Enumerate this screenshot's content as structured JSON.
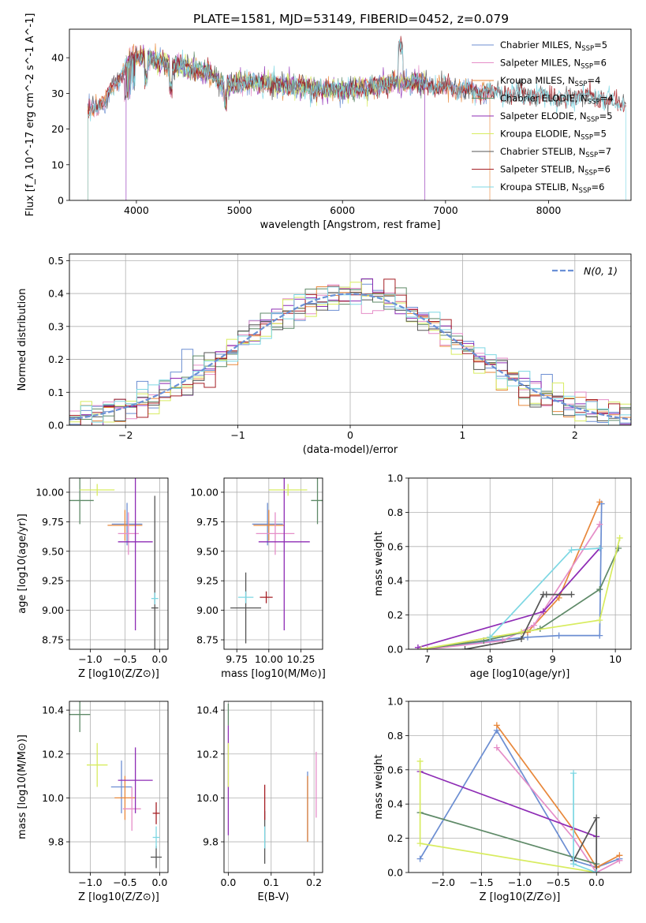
{
  "figure_title": "PLATE=1581, MJD=53149, FIBERID=0452, z=0.079",
  "colors": {
    "c1": "#6c8ed2",
    "c2": "#e8873a",
    "c3": "#e58ec8",
    "c4": "#5f8a68",
    "c5": "#8e2cb5",
    "c6": "#d8ec60",
    "c7": "#555555",
    "c8": "#a51f25",
    "c9": "#7dd7e3",
    "gaussian": "#6a90d6",
    "grid": "#b0b0b0"
  },
  "chart_data": [
    {
      "id": "spectrum",
      "type": "line",
      "xlabel": "wavelength [Angstrom, rest frame]",
      "ylabel": "Flux [f_λ 10^-17 erg cm^-2 s^-1 A^-1]",
      "xlim": [
        3350,
        8800
      ],
      "ylim": [
        0,
        48
      ],
      "xticks": [
        4000,
        5000,
        6000,
        7000,
        8000
      ],
      "yticks": [
        0,
        10,
        20,
        30,
        40
      ],
      "grid": false,
      "legend_placement": "upper right",
      "legend": [
        {
          "base": "Chabrier MILES, N",
          "sub": "SSP",
          "suffix": "=5",
          "color": "c1"
        },
        {
          "base": "Salpeter MILES, N",
          "sub": "SSP",
          "suffix": "=6",
          "color": "c3"
        },
        {
          "base": "Kroupa MILES, N",
          "sub": "SSP",
          "suffix": "=4",
          "color": "c2"
        },
        {
          "base": "Chabrier ELODIE, N",
          "sub": "SSP",
          "suffix": "=4",
          "color": "c4"
        },
        {
          "base": "Salpeter ELODIE, N",
          "sub": "SSP",
          "suffix": "=5",
          "color": "c5"
        },
        {
          "base": "Kroupa ELODIE, N",
          "sub": "SSP",
          "suffix": "=5",
          "color": "c6"
        },
        {
          "base": "Chabrier STELIB, N",
          "sub": "SSP",
          "suffix": "=7",
          "color": "c7"
        },
        {
          "base": "Salpeter STELIB, N",
          "sub": "SSP",
          "suffix": "=6",
          "color": "c8"
        },
        {
          "base": "Kroupa STELIB, N",
          "sub": "SSP",
          "suffix": "=6",
          "color": "c9"
        }
      ],
      "continuum": [
        [
          3530,
          25
        ],
        [
          3700,
          28
        ],
        [
          3850,
          35
        ],
        [
          3950,
          40
        ],
        [
          4100,
          40
        ],
        [
          4300,
          38
        ],
        [
          4500,
          37
        ],
        [
          4700,
          36
        ],
        [
          4870,
          32
        ],
        [
          5000,
          33
        ],
        [
          5200,
          33
        ],
        [
          5500,
          32
        ],
        [
          5800,
          31
        ],
        [
          6000,
          31
        ],
        [
          6300,
          32
        ],
        [
          6500,
          33
        ],
        [
          6700,
          33
        ],
        [
          6900,
          32
        ],
        [
          7200,
          31
        ],
        [
          7500,
          30
        ],
        [
          7800,
          29.5
        ],
        [
          8100,
          29
        ],
        [
          8400,
          29
        ],
        [
          8750,
          27
        ]
      ],
      "edges": {
        "miles": [
          3530,
          7430
        ],
        "elodie": [
          3900,
          6800
        ]
      }
    },
    {
      "id": "residuals",
      "type": "histogram",
      "xlabel": "(data-model)/error",
      "ylabel": "Normed distribution",
      "xlim": [
        -2.5,
        2.5
      ],
      "ylim": [
        0,
        0.52
      ],
      "xticks": [
        -2,
        -1,
        0,
        1,
        2
      ],
      "yticks": [
        0.0,
        0.1,
        0.2,
        0.3,
        0.4,
        0.5
      ],
      "grid": true,
      "legend_placement": "upper right",
      "legend": [
        {
          "label": "N(0, 1)",
          "color": "gaussian",
          "style": "dashed"
        }
      ],
      "bin_width": 0.1
    },
    {
      "id": "age_vs_Z",
      "type": "scatter",
      "xlabel": "Z [log10(Z/Z⊙)]",
      "ylabel": "age [log10(age/yr)]",
      "xlim": [
        -1.3,
        0.12
      ],
      "ylim": [
        8.67,
        10.12
      ],
      "xticks": [
        -1.0,
        -0.5,
        0.0
      ],
      "yticks": [
        8.75,
        9.0,
        9.25,
        9.5,
        9.75,
        10.0
      ],
      "grid": true,
      "points": [
        {
          "x": -0.47,
          "xerr": 0.22,
          "y": 9.73,
          "yerr": 0.18,
          "color": "c1"
        },
        {
          "x": -0.5,
          "xerr": 0.25,
          "y": 9.72,
          "yerr": 0.13,
          "color": "c2"
        },
        {
          "x": -0.45,
          "xerr": 0.15,
          "y": 9.65,
          "yerr": 0.18,
          "color": "c3"
        },
        {
          "x": -1.15,
          "xerr": 0.2,
          "y": 9.93,
          "yerr": 0.2,
          "color": "c4"
        },
        {
          "x": -0.35,
          "xerr": 0.25,
          "y": 9.58,
          "yerr": 0.75,
          "color": "c5"
        },
        {
          "x": -0.9,
          "xerr": 0.25,
          "y": 10.02,
          "yerr": 0.05,
          "color": "c6"
        },
        {
          "x": -0.07,
          "xerr": 0.05,
          "y": 9.02,
          "yerr": 0.95,
          "color": "c7"
        },
        {
          "x": -0.07,
          "xerr": 0.05,
          "y": 9.1,
          "yerr": 0.05,
          "color": "c9"
        }
      ]
    },
    {
      "id": "age_vs_mass",
      "type": "scatter",
      "xlabel": "mass [log10(M/M⊙)]",
      "ylabel": "",
      "xlim": [
        9.65,
        10.42
      ],
      "ylim": [
        8.67,
        10.12
      ],
      "xticks": [
        9.75,
        10.0,
        10.25
      ],
      "yticks": [
        8.75,
        9.0,
        9.25,
        9.5,
        9.75,
        10.0
      ],
      "grid": true,
      "points": [
        {
          "x": 9.99,
          "xerr": 0.12,
          "y": 9.73,
          "yerr": 0.18,
          "color": "c1"
        },
        {
          "x": 10.0,
          "xerr": 0.12,
          "y": 9.72,
          "yerr": 0.13,
          "color": "c2"
        },
        {
          "x": 10.05,
          "xerr": 0.15,
          "y": 9.65,
          "yerr": 0.18,
          "color": "c3"
        },
        {
          "x": 10.38,
          "xerr": 0.05,
          "y": 9.93,
          "yerr": 0.2,
          "color": "c4"
        },
        {
          "x": 10.12,
          "xerr": 0.2,
          "y": 9.58,
          "yerr": 0.75,
          "color": "c5"
        },
        {
          "x": 10.15,
          "xerr": 0.15,
          "y": 10.02,
          "yerr": 0.05,
          "color": "c6"
        },
        {
          "x": 9.82,
          "xerr": 0.12,
          "y": 9.02,
          "yerr": 0.3,
          "color": "c7"
        },
        {
          "x": 9.98,
          "xerr": 0.05,
          "y": 9.11,
          "yerr": 0.05,
          "color": "c8"
        },
        {
          "x": 9.82,
          "xerr": 0.06,
          "y": 9.11,
          "yerr": 0.05,
          "color": "c9"
        }
      ]
    },
    {
      "id": "weight_vs_age",
      "type": "line",
      "xlabel": "age [log10(age/yr)]",
      "ylabel": "mass weight",
      "xlim": [
        6.7,
        10.25
      ],
      "ylim": [
        0,
        1.0
      ],
      "xticks": [
        7,
        8,
        9,
        10
      ],
      "yticks": [
        0.0,
        0.2,
        0.4,
        0.6,
        0.8,
        1.0
      ],
      "grid": true,
      "series": [
        {
          "color": "c1",
          "x": [
            7.0,
            8.0,
            8.6,
            9.1,
            9.75,
            9.78
          ],
          "y": [
            0.0,
            0.05,
            0.07,
            0.08,
            0.08,
            0.85
          ]
        },
        {
          "color": "c2",
          "x": [
            7.0,
            8.0,
            8.6,
            9.1,
            9.75
          ],
          "y": [
            0.0,
            0.07,
            0.1,
            0.3,
            0.86
          ]
        },
        {
          "color": "c3",
          "x": [
            7.0,
            8.2,
            8.7,
            9.75
          ],
          "y": [
            0.0,
            0.05,
            0.14,
            0.73
          ]
        },
        {
          "color": "c4",
          "x": [
            6.9,
            7.9,
            8.8,
            9.75,
            10.05
          ],
          "y": [
            0.0,
            0.05,
            0.12,
            0.35,
            0.59
          ]
        },
        {
          "color": "c5",
          "x": [
            6.85,
            8.85,
            9.75
          ],
          "y": [
            0.01,
            0.22,
            0.59
          ]
        },
        {
          "color": "c6",
          "x": [
            6.9,
            8.5,
            9.75,
            10.07
          ],
          "y": [
            0.0,
            0.1,
            0.17,
            0.65
          ]
        },
        {
          "color": "c7",
          "x": [
            7.6,
            8.5,
            8.85,
            8.9,
            9.3
          ],
          "y": [
            0.0,
            0.06,
            0.32,
            0.32,
            0.32
          ]
        },
        {
          "color": "c9",
          "x": [
            8.0,
            9.3,
            9.75
          ],
          "y": [
            0.07,
            0.58,
            0.59
          ]
        }
      ]
    },
    {
      "id": "mass_vs_Z",
      "type": "scatter",
      "xlabel": "Z [log10(Z/Z⊙)]",
      "ylabel": "mass [log10(M/M⊙)]",
      "xlim": [
        -1.3,
        0.12
      ],
      "ylim": [
        9.66,
        10.44
      ],
      "xticks": [
        -1.0,
        -0.5,
        0.0
      ],
      "yticks": [
        9.8,
        10.0,
        10.2,
        10.4
      ],
      "grid": true,
      "points": [
        {
          "x": -0.55,
          "xerr": 0.15,
          "y": 10.05,
          "yerr": 0.12,
          "color": "c1"
        },
        {
          "x": -0.5,
          "xerr": 0.15,
          "y": 10.0,
          "yerr": 0.1,
          "color": "c2"
        },
        {
          "x": -0.4,
          "xerr": 0.13,
          "y": 9.95,
          "yerr": 0.1,
          "color": "c3"
        },
        {
          "x": -1.15,
          "xerr": 0.15,
          "y": 10.38,
          "yerr": 0.08,
          "color": "c4"
        },
        {
          "x": -0.35,
          "xerr": 0.25,
          "y": 10.08,
          "yerr": 0.15,
          "color": "c5"
        },
        {
          "x": -0.9,
          "xerr": 0.15,
          "y": 10.15,
          "yerr": 0.1,
          "color": "c6"
        },
        {
          "x": -0.05,
          "xerr": 0.08,
          "y": 9.73,
          "yerr": 0.05,
          "color": "c7"
        },
        {
          "x": -0.05,
          "xerr": 0.05,
          "y": 9.93,
          "yerr": 0.05,
          "color": "c8"
        },
        {
          "x": -0.05,
          "xerr": 0.05,
          "y": 9.82,
          "yerr": 0.05,
          "color": "c9"
        }
      ]
    },
    {
      "id": "mass_vs_EBV",
      "type": "scatter",
      "xlabel": "E(B-V)",
      "ylabel": "",
      "xlim": [
        -0.01,
        0.22
      ],
      "ylim": [
        9.66,
        10.44
      ],
      "xticks": [
        0.0,
        0.1,
        0.2
      ],
      "yticks": [
        9.8,
        10.0,
        10.2,
        10.4
      ],
      "grid": true,
      "points": [
        {
          "x": 0.185,
          "y": 9.96,
          "yerr": 0.16,
          "color": "c1"
        },
        {
          "x": 0.185,
          "y": 9.95,
          "yerr": 0.15,
          "color": "c2"
        },
        {
          "x": 0.205,
          "y": 10.06,
          "yerr": 0.15,
          "color": "c3"
        },
        {
          "x": 0.0,
          "y": 10.38,
          "yerr": 0.05,
          "color": "c4"
        },
        {
          "x": 0.0,
          "y": 10.08,
          "yerr": 0.25,
          "color": "c5"
        },
        {
          "x": 0.0,
          "y": 10.15,
          "yerr": 0.1,
          "color": "c6"
        },
        {
          "x": 0.085,
          "y": 9.82,
          "yerr": 0.12,
          "color": "c7"
        },
        {
          "x": 0.085,
          "y": 9.98,
          "yerr": 0.08,
          "color": "c8"
        },
        {
          "x": 0.085,
          "y": 9.82,
          "yerr": 0.05,
          "color": "c9"
        }
      ]
    },
    {
      "id": "weight_vs_Z",
      "type": "line",
      "xlabel": "Z [log10(Z/Z⊙)]",
      "ylabel": "mass weight",
      "xlim": [
        -2.45,
        0.45
      ],
      "ylim": [
        0,
        1.0
      ],
      "xticks": [
        -2.0,
        -1.5,
        -1.0,
        -0.5,
        0.0
      ],
      "yticks": [
        0.0,
        0.2,
        0.4,
        0.6,
        0.8,
        1.0
      ],
      "grid": true,
      "series": [
        {
          "color": "c1",
          "x": [
            -2.3,
            -1.3,
            -0.3,
            0.0,
            0.3
          ],
          "y": [
            0.08,
            0.83,
            0.07,
            0.03,
            0.08
          ]
        },
        {
          "color": "c2",
          "x": [
            -1.3,
            -0.3,
            0.0,
            0.3
          ],
          "y": [
            0.86,
            0.25,
            0.03,
            0.1
          ]
        },
        {
          "color": "c3",
          "x": [
            -1.3,
            -0.3,
            0.0,
            0.3
          ],
          "y": [
            0.73,
            0.2,
            0.0,
            0.07
          ]
        },
        {
          "color": "c4",
          "x": [
            -2.3,
            0.0,
            0.0
          ],
          "y": [
            0.35,
            0.05,
            0.0
          ]
        },
        {
          "color": "c5",
          "x": [
            -2.3,
            0.0
          ],
          "y": [
            0.59,
            0.21
          ]
        },
        {
          "color": "c6",
          "x": [
            -2.3,
            -2.3,
            0.0
          ],
          "y": [
            0.65,
            0.17,
            0.0
          ]
        },
        {
          "color": "c7",
          "x": [
            -0.3,
            0.0,
            0.0
          ],
          "y": [
            0.07,
            0.32,
            0.0
          ]
        },
        {
          "color": "c9",
          "x": [
            -0.3,
            -0.3,
            0.0
          ],
          "y": [
            0.58,
            0.05,
            0.0
          ]
        }
      ]
    }
  ]
}
